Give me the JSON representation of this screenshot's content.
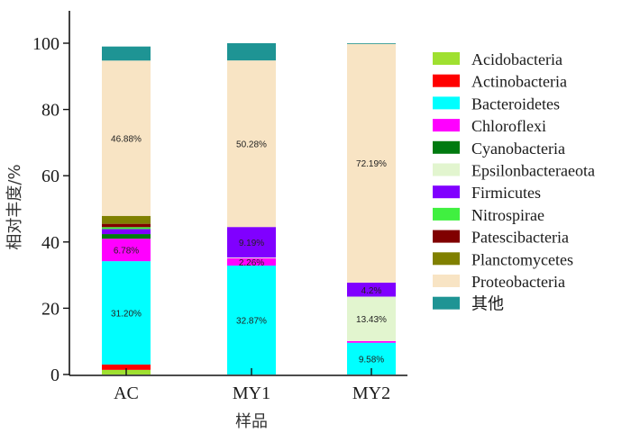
{
  "chart_data": {
    "type": "bar",
    "stacked": true,
    "title": "",
    "xlabel": "样品",
    "ylabel": "相对丰度/%",
    "ylim": [
      0,
      100
    ],
    "yticks": [
      0,
      20,
      40,
      60,
      80,
      100
    ],
    "categories": [
      "AC",
      "MY1",
      "MY2"
    ],
    "legend_position": "right",
    "series": [
      {
        "name": "Acidobacteria",
        "color": "#9FE030",
        "values": [
          1.4,
          0.0,
          0.0
        ]
      },
      {
        "name": "Actinobacteria",
        "color": "#FF0000",
        "values": [
          1.6,
          0.0,
          0.0
        ]
      },
      {
        "name": "Bacteroidetes",
        "color": "#00FFFF",
        "values": [
          31.2,
          32.87,
          9.58
        ]
      },
      {
        "name": "Chloroflexi",
        "color": "#FF00FF",
        "values": [
          6.78,
          2.26,
          0.5
        ]
      },
      {
        "name": "Cyanobacteria",
        "color": "#007A10",
        "values": [
          1.4,
          0.0,
          0.0
        ]
      },
      {
        "name": "Epsilonbacteraeota",
        "color": "#E2F5CF",
        "values": [
          0.0,
          0.2,
          13.43
        ]
      },
      {
        "name": "Firmicutes",
        "color": "#8000FF",
        "values": [
          1.5,
          9.19,
          4.2
        ]
      },
      {
        "name": "Nitrospirae",
        "color": "#40F040",
        "values": [
          0.6,
          0.0,
          0.0
        ]
      },
      {
        "name": "Patescibacteria",
        "color": "#800000",
        "values": [
          1.0,
          0.0,
          0.0
        ]
      },
      {
        "name": "Planctomycetes",
        "color": "#808000",
        "values": [
          2.4,
          0.0,
          0.0
        ]
      },
      {
        "name": "Proteobacteria",
        "color": "#F8E4C4",
        "values": [
          46.88,
          50.28,
          72.19
        ]
      },
      {
        "name": "其他",
        "color": "#1E9494",
        "values": [
          4.24,
          5.2,
          0.1
        ]
      }
    ],
    "data_labels": [
      {
        "category": "AC",
        "series": "Proteobacteria",
        "text": "46.88%"
      },
      {
        "category": "AC",
        "series": "Chloroflexi",
        "text": "6.78%"
      },
      {
        "category": "AC",
        "series": "Bacteroidetes",
        "text": "31.20%"
      },
      {
        "category": "MY1",
        "series": "Proteobacteria",
        "text": "50.28%"
      },
      {
        "category": "MY1",
        "series": "Firmicutes",
        "text": "9.19%"
      },
      {
        "category": "MY1",
        "series": "Chloroflexi",
        "text": "2.26%"
      },
      {
        "category": "MY1",
        "series": "Bacteroidetes",
        "text": "32.87%"
      },
      {
        "category": "MY2",
        "series": "Proteobacteria",
        "text": "72.19%"
      },
      {
        "category": "MY2",
        "series": "Firmicutes",
        "text": "4.2%"
      },
      {
        "category": "MY2",
        "series": "Epsilonbacteraeota",
        "text": "13.43%"
      },
      {
        "category": "MY2",
        "series": "Bacteroidetes",
        "text": "9.58%"
      }
    ]
  }
}
